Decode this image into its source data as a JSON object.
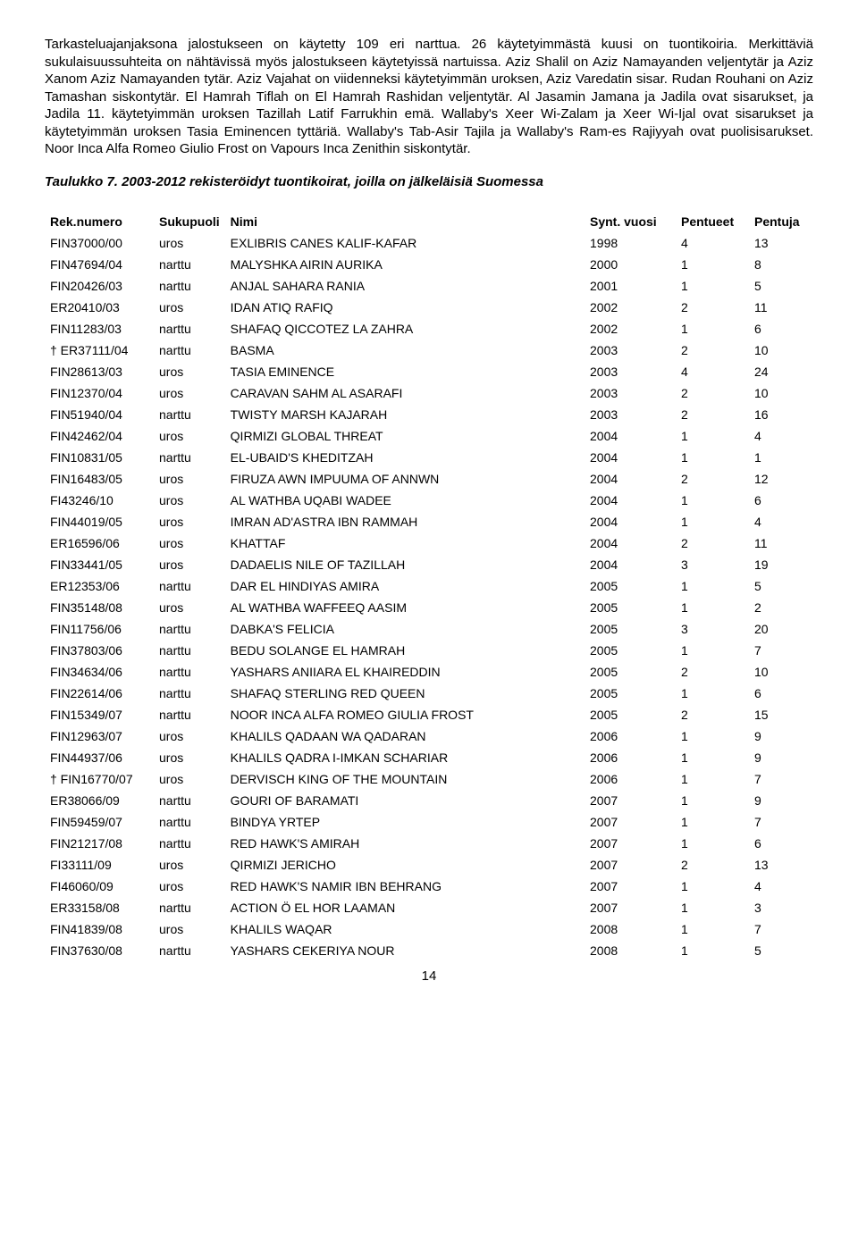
{
  "paragraph": "Tarkasteluajanjaksona jalostukseen on käytetty 109 eri narttua. 26 käytetyimmästä kuusi on tuontikoiria. Merkittäviä sukulaisuussuhteita on nähtävissä myös jalostukseen käytetyissä nartuissa. Aziz Shalil on Aziz Namayanden veljentytär ja Aziz Xanom Aziz Namayanden tytär. Aziz Vajahat on viidenneksi käytetyimmän uroksen, Aziz Varedatin sisar. Rudan Rouhani on Aziz Tamashan siskontytär. El Hamrah Tiflah on El Hamrah Rashidan veljentytär. Al Jasamin Jamana ja Jadila ovat sisarukset, ja Jadila 11. käytetyimmän uroksen Tazillah Latif Farrukhin emä. Wallaby's Xeer Wi-Zalam ja Xeer Wi-Ijal ovat sisarukset ja käytetyimmän uroksen Tasia Eminencen tyttäriä. Wallaby's Tab-Asir Tajila ja Wallaby's Ram-es Rajiyyah ovat puolisisarukset. Noor Inca Alfa Romeo Giulio Frost on Vapours Inca Zenithin siskontytär.",
  "caption": "Taulukko 7. 2003-2012 rekisteröidyt tuontikoirat, joilla on jälkeläisiä Suomessa",
  "headers": {
    "reg": "Rek.numero",
    "sex": "Sukupuoli",
    "name": "Nimi",
    "year": "Synt. vuosi",
    "litters": "Pentueet",
    "puppies": "Pentuja"
  },
  "rows": [
    {
      "reg": "FIN37000/00",
      "sex": "uros",
      "name": "EXLIBRIS CANES KALIF-KAFAR",
      "year": "1998",
      "lit": "4",
      "pup": "13"
    },
    {
      "reg": "FIN47694/04",
      "sex": "narttu",
      "name": "MALYSHKA AIRIN AURIKA",
      "year": "2000",
      "lit": "1",
      "pup": "8"
    },
    {
      "reg": "FIN20426/03",
      "sex": "narttu",
      "name": "ANJAL SAHARA RANIA",
      "year": "2001",
      "lit": "1",
      "pup": "5"
    },
    {
      "reg": "ER20410/03",
      "sex": "uros",
      "name": "IDAN ATIQ RAFIQ",
      "year": "2002",
      "lit": "2",
      "pup": "11"
    },
    {
      "reg": "FIN11283/03",
      "sex": "narttu",
      "name": "SHAFAQ QICCOTEZ LA ZAHRA",
      "year": "2002",
      "lit": "1",
      "pup": "6"
    },
    {
      "reg": "† ER37111/04",
      "sex": "narttu",
      "name": "BASMA",
      "year": "2003",
      "lit": "2",
      "pup": "10"
    },
    {
      "reg": "FIN28613/03",
      "sex": "uros",
      "name": "TASIA EMINENCE",
      "year": "2003",
      "lit": "4",
      "pup": "24"
    },
    {
      "reg": "FIN12370/04",
      "sex": "uros",
      "name": "CARAVAN SAHM AL ASARAFI",
      "year": "2003",
      "lit": "2",
      "pup": "10"
    },
    {
      "reg": "FIN51940/04",
      "sex": "narttu",
      "name": "TWISTY MARSH KAJARAH",
      "year": "2003",
      "lit": "2",
      "pup": "16"
    },
    {
      "reg": "FIN42462/04",
      "sex": "uros",
      "name": "QIRMIZI GLOBAL THREAT",
      "year": "2004",
      "lit": "1",
      "pup": "4"
    },
    {
      "reg": "FIN10831/05",
      "sex": "narttu",
      "name": "EL-UBAID'S KHEDITZAH",
      "year": "2004",
      "lit": "1",
      "pup": "1"
    },
    {
      "reg": "FIN16483/05",
      "sex": "uros",
      "name": "FIRUZA AWN IMPUUMA OF ANNWN",
      "year": "2004",
      "lit": "2",
      "pup": "12"
    },
    {
      "reg": "FI43246/10",
      "sex": "uros",
      "name": "AL WATHBA UQABI WADEE",
      "year": "2004",
      "lit": "1",
      "pup": "6"
    },
    {
      "reg": "FIN44019/05",
      "sex": "uros",
      "name": "IMRAN AD'ASTRA IBN RAMMAH",
      "year": "2004",
      "lit": "1",
      "pup": "4"
    },
    {
      "reg": "ER16596/06",
      "sex": "uros",
      "name": "KHATTAF",
      "year": "2004",
      "lit": "2",
      "pup": "11"
    },
    {
      "reg": "FIN33441/05",
      "sex": "uros",
      "name": "DADAELIS NILE OF TAZILLAH",
      "year": "2004",
      "lit": "3",
      "pup": "19"
    },
    {
      "reg": "ER12353/06",
      "sex": "narttu",
      "name": "DAR EL HINDIYAS AMIRA",
      "year": "2005",
      "lit": "1",
      "pup": "5"
    },
    {
      "reg": "FIN35148/08",
      "sex": "uros",
      "name": "AL WATHBA WAFFEEQ AASIM",
      "year": "2005",
      "lit": "1",
      "pup": "2"
    },
    {
      "reg": "FIN11756/06",
      "sex": "narttu",
      "name": "DABKA'S FELICIA",
      "year": "2005",
      "lit": "3",
      "pup": "20"
    },
    {
      "reg": "FIN37803/06",
      "sex": "narttu",
      "name": "BEDU SOLANGE EL HAMRAH",
      "year": "2005",
      "lit": "1",
      "pup": "7"
    },
    {
      "reg": "FIN34634/06",
      "sex": "narttu",
      "name": "YASHARS ANIIARA EL KHAIREDDIN",
      "year": "2005",
      "lit": "2",
      "pup": "10"
    },
    {
      "reg": "FIN22614/06",
      "sex": "narttu",
      "name": "SHAFAQ STERLING RED QUEEN",
      "year": "2005",
      "lit": "1",
      "pup": "6"
    },
    {
      "reg": "FIN15349/07",
      "sex": "narttu",
      "name": "NOOR INCA ALFA ROMEO GIULIA FROST",
      "year": "2005",
      "lit": "2",
      "pup": "15"
    },
    {
      "reg": "FIN12963/07",
      "sex": "uros",
      "name": "KHALILS QADAAN WA QADARAN",
      "year": "2006",
      "lit": "1",
      "pup": "9"
    },
    {
      "reg": "FIN44937/06",
      "sex": "uros",
      "name": "KHALILS QADRA I-IMKAN SCHARIAR",
      "year": "2006",
      "lit": "1",
      "pup": "9"
    },
    {
      "reg": "† FIN16770/07",
      "sex": "uros",
      "name": "DERVISCH KING OF THE MOUNTAIN",
      "year": "2006",
      "lit": "1",
      "pup": "7"
    },
    {
      "reg": "ER38066/09",
      "sex": "narttu",
      "name": "GOURI OF BARAMATI",
      "year": "2007",
      "lit": "1",
      "pup": "9"
    },
    {
      "reg": "FIN59459/07",
      "sex": "narttu",
      "name": "BINDYA YRTEP",
      "year": "2007",
      "lit": "1",
      "pup": "7"
    },
    {
      "reg": "FIN21217/08",
      "sex": "narttu",
      "name": "RED HAWK'S AMIRAH",
      "year": "2007",
      "lit": "1",
      "pup": "6"
    },
    {
      "reg": "FI33111/09",
      "sex": "uros",
      "name": "QIRMIZI JERICHO",
      "year": "2007",
      "lit": "2",
      "pup": "13"
    },
    {
      "reg": "FI46060/09",
      "sex": "uros",
      "name": "RED HAWK'S NAMIR IBN BEHRANG",
      "year": "2007",
      "lit": "1",
      "pup": "4"
    },
    {
      "reg": "ER33158/08",
      "sex": "narttu",
      "name": " ACTION Ö EL HOR LAAMAN",
      "year": "2007",
      "lit": "1",
      "pup": "3"
    },
    {
      "reg": "FIN41839/08",
      "sex": "uros",
      "name": "KHALILS WAQAR",
      "year": "2008",
      "lit": "1",
      "pup": "7"
    },
    {
      "reg": "FIN37630/08",
      "sex": "narttu",
      "name": "YASHARS CEKERIYA NOUR",
      "year": "2008",
      "lit": "1",
      "pup": "5"
    }
  ],
  "page_number": "14"
}
